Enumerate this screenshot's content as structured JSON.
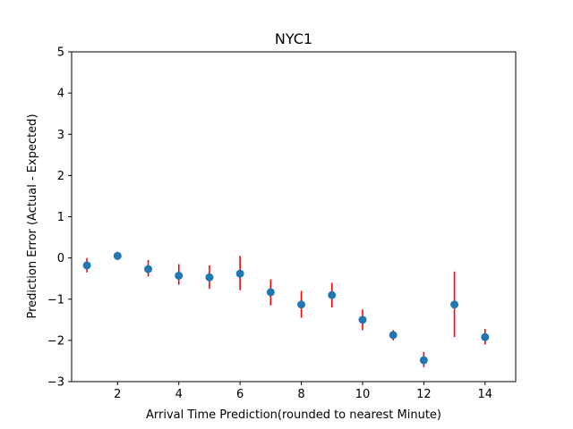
{
  "chart_data": {
    "type": "scatter",
    "title": "NYC1",
    "xlabel": "Arrival Time Prediction(rounded to nearest Minute)",
    "ylabel": "Prediction Error (Actual - Expected)",
    "xlim": [
      0.5,
      15
    ],
    "ylim": [
      -3,
      5
    ],
    "xticks": [
      2,
      4,
      6,
      8,
      10,
      12,
      14
    ],
    "yticks": [
      -3,
      -2,
      -1,
      0,
      1,
      2,
      3,
      4,
      5
    ],
    "grid": false,
    "colors": {
      "point": "#1f77b4",
      "errorbar": "#ff0000",
      "axes": "#000000"
    },
    "points": [
      {
        "x": 1,
        "y": -0.18,
        "err_low": -0.35,
        "err_high": 0.0
      },
      {
        "x": 2,
        "y": 0.05,
        "err_low": -0.05,
        "err_high": 0.15
      },
      {
        "x": 3,
        "y": -0.27,
        "err_low": -0.45,
        "err_high": -0.05
      },
      {
        "x": 4,
        "y": -0.43,
        "err_low": -0.65,
        "err_high": -0.15
      },
      {
        "x": 5,
        "y": -0.47,
        "err_low": -0.75,
        "err_high": -0.18
      },
      {
        "x": 6,
        "y": -0.38,
        "err_low": -0.78,
        "err_high": 0.05
      },
      {
        "x": 7,
        "y": -0.83,
        "err_low": -1.15,
        "err_high": -0.52
      },
      {
        "x": 8,
        "y": -1.13,
        "err_low": -1.45,
        "err_high": -0.8
      },
      {
        "x": 9,
        "y": -0.9,
        "err_low": -1.2,
        "err_high": -0.6
      },
      {
        "x": 10,
        "y": -1.5,
        "err_low": -1.75,
        "err_high": -1.25
      },
      {
        "x": 11,
        "y": -1.87,
        "err_low": -2.0,
        "err_high": -1.75
      },
      {
        "x": 12,
        "y": -2.48,
        "err_low": -2.65,
        "err_high": -2.28
      },
      {
        "x": 13,
        "y": -1.13,
        "err_low": -1.92,
        "err_high": -0.33
      },
      {
        "x": 14,
        "y": -1.92,
        "err_low": -2.1,
        "err_high": -1.72
      }
    ]
  }
}
